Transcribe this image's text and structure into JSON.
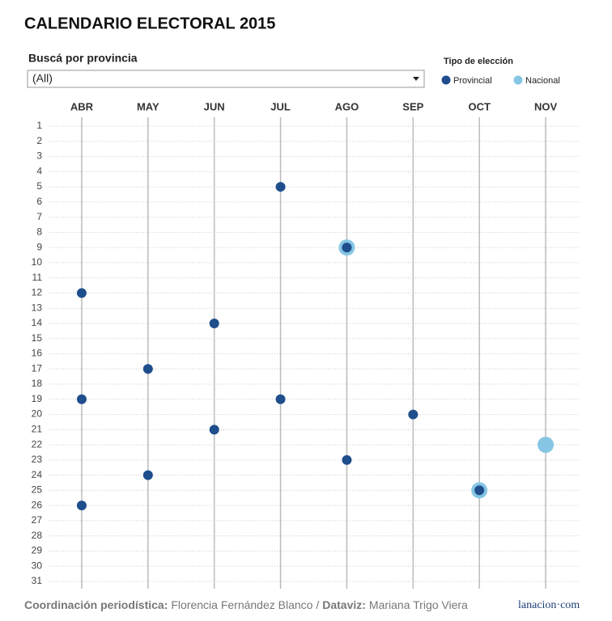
{
  "chart_data": {
    "type": "scatter",
    "title": "CALENDARIO ELECTORAL 2015",
    "filter": {
      "label": "Buscá por provincia",
      "value": "(All)"
    },
    "legend_title": "Tipo de elección",
    "categories": [
      "ABR",
      "MAY",
      "JUN",
      "JUL",
      "AGO",
      "SEP",
      "OCT",
      "NOV"
    ],
    "ylim": [
      1,
      31
    ],
    "y_inverted": true,
    "yticks": [
      1,
      2,
      3,
      4,
      5,
      6,
      7,
      8,
      9,
      10,
      11,
      12,
      13,
      14,
      15,
      16,
      17,
      18,
      19,
      20,
      21,
      22,
      23,
      24,
      25,
      26,
      27,
      28,
      29,
      30,
      31
    ],
    "grid": true,
    "series": [
      {
        "name": "Nacional",
        "color": "#86c6e4",
        "size": 10,
        "x": [
          "AGO",
          "NOV",
          "OCT"
        ],
        "values": [
          9,
          22,
          25
        ]
      },
      {
        "name": "Provincial",
        "color": "#1f4e8c",
        "size": 6,
        "x": [
          "JUL",
          "AGO",
          "ABR",
          "JUN",
          "MAY",
          "ABR",
          "JUL",
          "SEP",
          "JUN",
          "AGO",
          "MAY",
          "ABR",
          "OCT"
        ],
        "values": [
          5,
          9,
          12,
          14,
          17,
          19,
          19,
          20,
          21,
          23,
          24,
          26,
          25
        ]
      }
    ],
    "legend_order": [
      1,
      0
    ],
    "footer": {
      "label1": "Coordinación periodística:",
      "name1": "Florencia Fernández Blanco /",
      "label2": "Dataviz:",
      "name2": "Mariana Trigo Viera",
      "logo": "lanacion·com"
    }
  }
}
